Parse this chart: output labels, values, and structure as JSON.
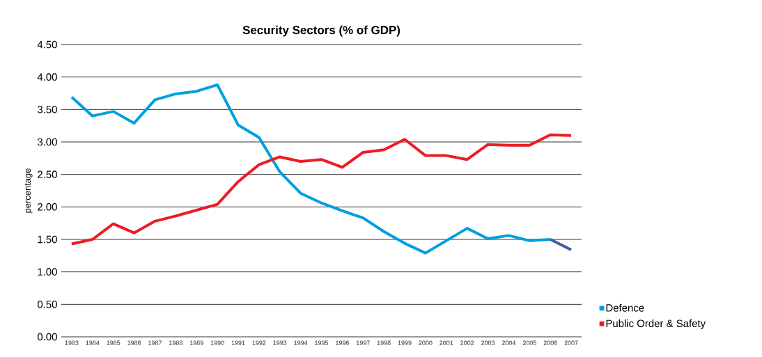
{
  "chart_data": {
    "type": "line",
    "title": "Security Sectors (% of GDP)",
    "ylabel": "percentage",
    "categories": [
      "1983",
      "1984",
      "1985",
      "1986",
      "1987",
      "1988",
      "1989",
      "1990",
      "1991",
      "1992",
      "1993",
      "1994",
      "1995",
      "1996",
      "1997",
      "1998",
      "1999",
      "2000",
      "2001",
      "2002",
      "2003",
      "2004",
      "2005",
      "2006",
      "2007"
    ],
    "series": [
      {
        "name": "Defence",
        "color": "#009fdf",
        "values": [
          3.69,
          3.4,
          3.47,
          3.29,
          3.65,
          3.74,
          3.78,
          3.88,
          3.26,
          3.07,
          2.54,
          2.21,
          2.06,
          1.94,
          1.83,
          1.62,
          1.44,
          1.29,
          1.48,
          1.67,
          1.51,
          1.56,
          1.48,
          1.5,
          null
        ]
      },
      {
        "name": "Public Order & Safety",
        "color": "#ed1c24",
        "values": [
          1.43,
          1.5,
          1.74,
          1.6,
          1.78,
          1.86,
          1.95,
          2.04,
          2.39,
          2.65,
          2.77,
          2.7,
          2.73,
          2.61,
          2.84,
          2.88,
          3.04,
          2.79,
          2.79,
          2.73,
          2.96,
          2.95,
          2.95,
          3.11,
          3.1
        ]
      },
      {
        "color": "#3f5aa8",
        "values": [
          null,
          null,
          null,
          null,
          null,
          null,
          null,
          null,
          null,
          null,
          null,
          null,
          null,
          null,
          null,
          null,
          null,
          null,
          null,
          null,
          null,
          null,
          null,
          1.5,
          1.34
        ]
      }
    ],
    "ylim": [
      0,
      4.5
    ],
    "yticks": [
      {
        "value": 0,
        "label": "0.00"
      },
      {
        "value": 0.5,
        "label": "0.50"
      },
      {
        "value": 1,
        "label": "1.00"
      },
      {
        "value": 1.5,
        "label": "1.50"
      },
      {
        "value": 2,
        "label": "2.00"
      },
      {
        "value": 2.5,
        "label": "2.50"
      },
      {
        "value": 3,
        "label": "3.00"
      },
      {
        "value": 3.5,
        "label": "3.50"
      },
      {
        "value": 4,
        "label": "4.00"
      },
      {
        "value": 4.5,
        "label": "4.50"
      }
    ],
    "grid": "y",
    "legend": "right",
    "marker": "none",
    "line_style": "solid"
  }
}
